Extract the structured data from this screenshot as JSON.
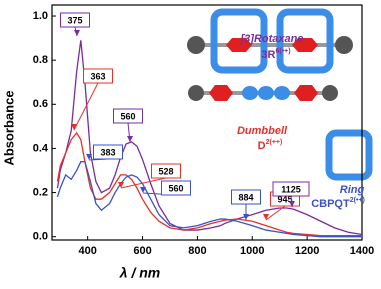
{
  "chart_data": {
    "type": "line",
    "xlabel": "λ / nm",
    "ylabel": "Absorbance",
    "x": [
      290,
      300,
      320,
      340,
      360,
      375,
      390,
      410,
      430,
      450,
      480,
      500,
      520,
      540,
      560,
      580,
      600,
      630,
      660,
      700,
      750,
      800,
      850,
      884,
      900,
      945,
      1000,
      1050,
      1100,
      1125,
      1150,
      1200,
      1250,
      1300,
      1350,
      1400
    ],
    "series": [
      {
        "name": "[3]Rotaxane",
        "formula": "3R",
        "charge": "6(•+)",
        "color": "#7a2c9e",
        "values": [
          0.22,
          0.3,
          0.38,
          0.48,
          0.75,
          0.89,
          0.7,
          0.38,
          0.25,
          0.2,
          0.22,
          0.28,
          0.36,
          0.42,
          0.43,
          0.41,
          0.35,
          0.24,
          0.14,
          0.06,
          0.03,
          0.03,
          0.04,
          0.05,
          0.06,
          0.08,
          0.1,
          0.12,
          0.13,
          0.13,
          0.125,
          0.1,
          0.07,
          0.04,
          0.02,
          0.01
        ]
      },
      {
        "name": "Dumbbell",
        "formula": "D",
        "charge": "2(++)",
        "color": "#e8302a",
        "values": [
          0.25,
          0.32,
          0.38,
          0.44,
          0.47,
          0.44,
          0.34,
          0.22,
          0.17,
          0.17,
          0.2,
          0.24,
          0.28,
          0.28,
          0.26,
          0.22,
          0.17,
          0.11,
          0.07,
          0.04,
          0.03,
          0.04,
          0.06,
          0.07,
          0.075,
          0.08,
          0.07,
          0.05,
          0.03,
          0.02,
          0.015,
          0.01,
          0.005,
          0.005,
          0.005,
          0.005
        ]
      },
      {
        "name": "Ring",
        "formula": "CBPQT",
        "charge": "2(•+)",
        "color": "#3a52c4",
        "values": [
          0.18,
          0.22,
          0.28,
          0.26,
          0.3,
          0.34,
          0.34,
          0.25,
          0.15,
          0.12,
          0.15,
          0.2,
          0.24,
          0.27,
          0.28,
          0.27,
          0.24,
          0.17,
          0.1,
          0.05,
          0.04,
          0.05,
          0.07,
          0.08,
          0.08,
          0.07,
          0.05,
          0.03,
          0.02,
          0.015,
          0.01,
          0.005,
          0.0,
          0.0,
          0.0,
          0.0
        ]
      }
    ],
    "xlim": [
      270,
      1400
    ],
    "ylim": [
      -0.015,
      1.05
    ],
    "xticks": [
      400,
      600,
      800,
      1000,
      1200,
      1400
    ],
    "yticks": [
      {
        "value": 0,
        "label": "0.0"
      },
      0.2,
      0.4,
      0.6,
      0.8,
      {
        "value": 1,
        "label": "1.0"
      }
    ],
    "annotations": [
      {
        "text": "375",
        "color": "#7a2c9e"
      },
      {
        "text": "363",
        "color": "#e8302a"
      },
      {
        "text": "383",
        "color": "#3a52c4"
      },
      {
        "text": "560",
        "color": "#7a2c9e"
      },
      {
        "text": "528",
        "color": "#e8302a"
      },
      {
        "text": "560",
        "color": "#3a52c4"
      },
      {
        "text": "884",
        "color": "#3a52c4"
      },
      {
        "text": "945",
        "color": "#e8302a"
      },
      {
        "text": "1125",
        "color": "#7a2c9e"
      }
    ]
  }
}
